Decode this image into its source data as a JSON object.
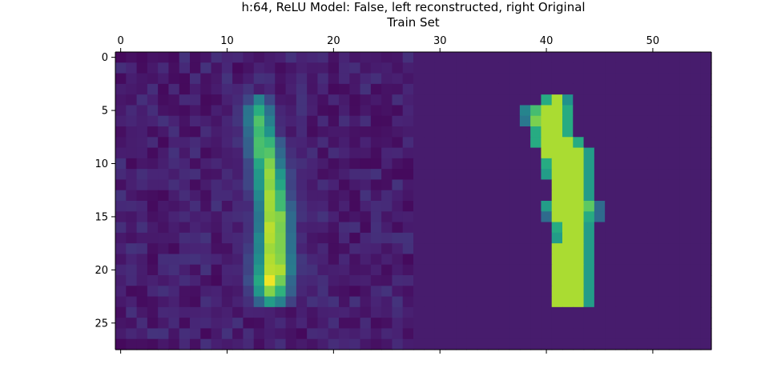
{
  "chart_data": {
    "type": "heatmap",
    "title": "h:64, ReLU Model: False, left reconstructed, right Original",
    "subtitle": "Train Set",
    "xlabel": "",
    "ylabel": "",
    "width": 56,
    "height": 28,
    "colormap": "viridis",
    "xlim": [
      -0.5,
      55.5
    ],
    "ylim": [
      27.5,
      -0.5
    ],
    "x_ticks": [
      0,
      10,
      20,
      30,
      40,
      50
    ],
    "y_ticks": [
      0,
      5,
      10,
      15,
      20,
      25
    ],
    "x_axis_position": "top",
    "grid": false,
    "panels": [
      {
        "name": "reconstructed",
        "col_range": [
          0,
          27
        ],
        "background": 0.1,
        "noise_amplitude": 0.07,
        "stroke": [
          {
            "row": 4,
            "center": 13.0,
            "halfwidth": 1.0,
            "peak": 0.45
          },
          {
            "row": 5,
            "center": 13.0,
            "halfwidth": 1.2,
            "peak": 0.65
          },
          {
            "row": 6,
            "center": 13.0,
            "halfwidth": 1.3,
            "peak": 0.7
          },
          {
            "row": 7,
            "center": 13.2,
            "halfwidth": 1.3,
            "peak": 0.72
          },
          {
            "row": 8,
            "center": 13.4,
            "halfwidth": 1.4,
            "peak": 0.78
          },
          {
            "row": 9,
            "center": 13.6,
            "halfwidth": 1.4,
            "peak": 0.82
          },
          {
            "row": 10,
            "center": 13.8,
            "halfwidth": 1.4,
            "peak": 0.83
          },
          {
            "row": 11,
            "center": 14.0,
            "halfwidth": 1.5,
            "peak": 0.84
          },
          {
            "row": 12,
            "center": 14.1,
            "halfwidth": 1.5,
            "peak": 0.85
          },
          {
            "row": 13,
            "center": 14.2,
            "halfwidth": 1.5,
            "peak": 0.86
          },
          {
            "row": 14,
            "center": 14.3,
            "halfwidth": 1.5,
            "peak": 0.88
          },
          {
            "row": 15,
            "center": 14.4,
            "halfwidth": 1.5,
            "peak": 0.93
          },
          {
            "row": 16,
            "center": 14.4,
            "halfwidth": 1.5,
            "peak": 0.95
          },
          {
            "row": 17,
            "center": 14.4,
            "halfwidth": 1.6,
            "peak": 0.94
          },
          {
            "row": 18,
            "center": 14.4,
            "halfwidth": 1.6,
            "peak": 0.92
          },
          {
            "row": 19,
            "center": 14.4,
            "halfwidth": 1.7,
            "peak": 0.96
          },
          {
            "row": 20,
            "center": 14.4,
            "halfwidth": 1.7,
            "peak": 0.97
          },
          {
            "row": 21,
            "center": 14.2,
            "halfwidth": 1.7,
            "peak": 0.98
          },
          {
            "row": 22,
            "center": 14.2,
            "halfwidth": 1.6,
            "peak": 0.85
          },
          {
            "row": 23,
            "center": 14.2,
            "halfwidth": 1.5,
            "peak": 0.55
          }
        ]
      },
      {
        "name": "original",
        "col_range": [
          28,
          55
        ],
        "background": 0.1,
        "pixels": [
          {
            "row": 4,
            "cells": [
              [
                40,
                0.62
              ],
              [
                41,
                0.88
              ],
              [
                42,
                0.5
              ]
            ]
          },
          {
            "row": 5,
            "cells": [
              [
                38,
                0.45
              ],
              [
                39,
                0.7
              ],
              [
                40,
                0.88
              ],
              [
                41,
                0.88
              ],
              [
                42,
                0.62
              ]
            ]
          },
          {
            "row": 6,
            "cells": [
              [
                38,
                0.4
              ],
              [
                39,
                0.8
              ],
              [
                40,
                0.88
              ],
              [
                41,
                0.88
              ],
              [
                42,
                0.62
              ]
            ]
          },
          {
            "row": 7,
            "cells": [
              [
                39,
                0.62
              ],
              [
                40,
                0.88
              ],
              [
                41,
                0.88
              ],
              [
                42,
                0.62
              ]
            ]
          },
          {
            "row": 8,
            "cells": [
              [
                39,
                0.62
              ],
              [
                40,
                0.88
              ],
              [
                41,
                0.88
              ],
              [
                42,
                0.88
              ],
              [
                43,
                0.62
              ]
            ]
          },
          {
            "row": 9,
            "cells": [
              [
                40,
                0.88
              ],
              [
                41,
                0.88
              ],
              [
                42,
                0.88
              ],
              [
                43,
                0.88
              ],
              [
                44,
                0.55
              ]
            ]
          },
          {
            "row": 10,
            "cells": [
              [
                40,
                0.62
              ],
              [
                41,
                0.88
              ],
              [
                42,
                0.88
              ],
              [
                43,
                0.88
              ],
              [
                44,
                0.55
              ]
            ]
          },
          {
            "row": 11,
            "cells": [
              [
                40,
                0.55
              ],
              [
                41,
                0.88
              ],
              [
                42,
                0.88
              ],
              [
                43,
                0.88
              ],
              [
                44,
                0.55
              ]
            ]
          },
          {
            "row": 12,
            "cells": [
              [
                41,
                0.88
              ],
              [
                42,
                0.88
              ],
              [
                43,
                0.88
              ],
              [
                44,
                0.55
              ]
            ]
          },
          {
            "row": 13,
            "cells": [
              [
                41,
                0.88
              ],
              [
                42,
                0.88
              ],
              [
                43,
                0.88
              ],
              [
                44,
                0.55
              ]
            ]
          },
          {
            "row": 14,
            "cells": [
              [
                40,
                0.55
              ],
              [
                41,
                0.88
              ],
              [
                42,
                0.88
              ],
              [
                43,
                0.88
              ],
              [
                44,
                0.75
              ],
              [
                45,
                0.35
              ]
            ]
          },
          {
            "row": 15,
            "cells": [
              [
                40,
                0.35
              ],
              [
                41,
                0.88
              ],
              [
                42,
                0.88
              ],
              [
                43,
                0.88
              ],
              [
                44,
                0.62
              ],
              [
                45,
                0.35
              ]
            ]
          },
          {
            "row": 16,
            "cells": [
              [
                41,
                0.62
              ],
              [
                42,
                0.88
              ],
              [
                43,
                0.88
              ],
              [
                44,
                0.55
              ]
            ]
          },
          {
            "row": 17,
            "cells": [
              [
                41,
                0.55
              ],
              [
                42,
                0.88
              ],
              [
                43,
                0.88
              ],
              [
                44,
                0.55
              ]
            ]
          },
          {
            "row": 18,
            "cells": [
              [
                41,
                0.88
              ],
              [
                42,
                0.88
              ],
              [
                43,
                0.88
              ],
              [
                44,
                0.55
              ]
            ]
          },
          {
            "row": 19,
            "cells": [
              [
                41,
                0.88
              ],
              [
                42,
                0.88
              ],
              [
                43,
                0.88
              ],
              [
                44,
                0.55
              ]
            ]
          },
          {
            "row": 20,
            "cells": [
              [
                41,
                0.88
              ],
              [
                42,
                0.88
              ],
              [
                43,
                0.88
              ],
              [
                44,
                0.55
              ]
            ]
          },
          {
            "row": 21,
            "cells": [
              [
                41,
                0.88
              ],
              [
                42,
                0.88
              ],
              [
                43,
                0.88
              ],
              [
                44,
                0.55
              ]
            ]
          },
          {
            "row": 22,
            "cells": [
              [
                41,
                0.88
              ],
              [
                42,
                0.88
              ],
              [
                43,
                0.88
              ],
              [
                44,
                0.55
              ]
            ]
          },
          {
            "row": 23,
            "cells": [
              [
                41,
                0.88
              ],
              [
                42,
                0.88
              ],
              [
                43,
                0.88
              ],
              [
                44,
                0.55
              ]
            ]
          }
        ]
      }
    ]
  }
}
